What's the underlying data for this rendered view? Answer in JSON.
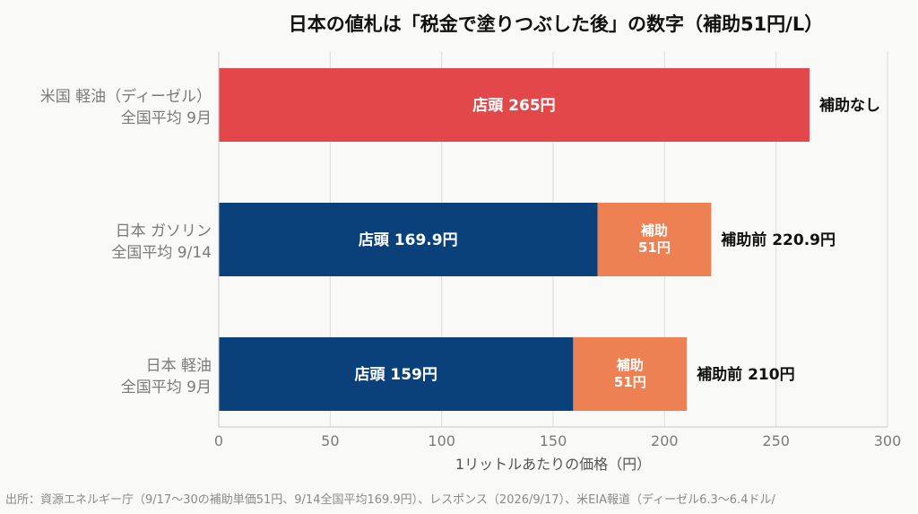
{
  "chart_data": {
    "type": "bar",
    "orientation": "horizontal",
    "stacked": true,
    "title": "日本の値札は「税金で塗りつぶした後」の数字（補助51円/L）",
    "xlabel": "1リットルあたりの価格（円）",
    "xlim": [
      0,
      300
    ],
    "xticks": [
      0,
      50,
      100,
      150,
      200,
      250,
      300
    ],
    "grid": true,
    "categories": [
      {
        "label_lines": [
          "米国 軽油（ディーゼル）",
          "全国平均 9月"
        ],
        "segments": [
          {
            "kind": "price",
            "value": 265,
            "label": "店頭 265円",
            "color": "#e2484a"
          }
        ],
        "end_label": "補助なし"
      },
      {
        "label_lines": [
          "日本 ガソリン",
          "全国平均 9/14"
        ],
        "segments": [
          {
            "kind": "price",
            "value": 169.9,
            "label": "店頭 169.9円",
            "color": "#0b417a"
          },
          {
            "kind": "subsidy",
            "value": 51,
            "label_lines": [
              "補助",
              "51円"
            ],
            "color": "#ee8154"
          }
        ],
        "end_label": "補助前 220.9円"
      },
      {
        "label_lines": [
          "日本 軽油",
          "全国平均 9月"
        ],
        "segments": [
          {
            "kind": "price",
            "value": 159,
            "label": "店頭 159円",
            "color": "#0b417a"
          },
          {
            "kind": "subsidy",
            "value": 51,
            "label_lines": [
              "補助",
              "51円"
            ],
            "color": "#ee8154"
          }
        ],
        "end_label": "補助前 210円"
      }
    ],
    "source": "出所：資源エネルギー庁（9/17〜30の補助単価51円、9/14全国平均169.9円）、レスポンス（2026/9/17）、米EIA報道（ディーゼル6.3〜6.4ドル/"
  }
}
